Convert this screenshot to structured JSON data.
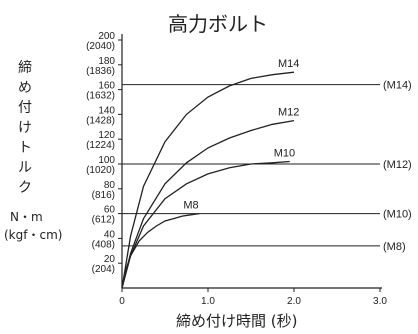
{
  "chart_data": {
    "type": "line",
    "title": "高力ボルト",
    "xlabel": "締め付け時間 (秒)",
    "ylabel": "締め付けトルク",
    "ylabel_unit_1": "N・m",
    "ylabel_unit_2": "(kgf・cm)",
    "xlim": [
      0,
      3.0
    ],
    "ylim": [
      0,
      200
    ],
    "x_ticks": [
      {
        "value": 0,
        "label": "0"
      },
      {
        "value": 1.0,
        "label": "1.0"
      },
      {
        "value": 2.0,
        "label": "2.0"
      },
      {
        "value": 3.0,
        "label": "3.0"
      }
    ],
    "y_ticks": [
      {
        "value": 20,
        "label": "20",
        "sub": "(204)"
      },
      {
        "value": 40,
        "label": "40",
        "sub": "(408)"
      },
      {
        "value": 60,
        "label": "60",
        "sub": "(612)"
      },
      {
        "value": 80,
        "label": "80",
        "sub": "(816)"
      },
      {
        "value": 100,
        "label": "100",
        "sub": "(1020)"
      },
      {
        "value": 120,
        "label": "120",
        "sub": "(1224)"
      },
      {
        "value": 140,
        "label": "140",
        "sub": "(1428)"
      },
      {
        "value": 160,
        "label": "160",
        "sub": "(1632)"
      },
      {
        "value": 180,
        "label": "180",
        "sub": "(1836)"
      },
      {
        "value": 200,
        "label": "200",
        "sub": "(2040)"
      }
    ],
    "reference_lines": [
      {
        "label": "(M14)",
        "value": 164
      },
      {
        "label": "(M12)",
        "value": 100
      },
      {
        "label": "(M10)",
        "value": 60
      },
      {
        "label": "(M8)",
        "value": 34
      }
    ],
    "series": [
      {
        "name": "M14",
        "x": [
          0,
          0.1,
          0.25,
          0.5,
          0.75,
          1.0,
          1.25,
          1.5,
          1.75,
          2.0
        ],
        "y": [
          0,
          42,
          82,
          118,
          140,
          154,
          163,
          169,
          172,
          174
        ]
      },
      {
        "name": "M12",
        "x": [
          0,
          0.1,
          0.25,
          0.5,
          0.75,
          1.0,
          1.25,
          1.5,
          1.75,
          2.0
        ],
        "y": [
          0,
          28,
          56,
          84,
          101,
          113,
          121,
          127,
          132,
          135
        ]
      },
      {
        "name": "M10",
        "x": [
          0,
          0.1,
          0.25,
          0.5,
          0.75,
          1.0,
          1.25,
          1.5,
          1.75,
          1.95
        ],
        "y": [
          0,
          26,
          50,
          72,
          84,
          92,
          97,
          100,
          101,
          102
        ]
      },
      {
        "name": "M8",
        "x": [
          0,
          0.05,
          0.1,
          0.2,
          0.3,
          0.4,
          0.5,
          0.6,
          0.7,
          0.8,
          0.9
        ],
        "y": [
          0,
          16,
          26,
          38,
          45,
          50,
          54,
          56,
          58,
          59,
          60
        ]
      }
    ]
  }
}
